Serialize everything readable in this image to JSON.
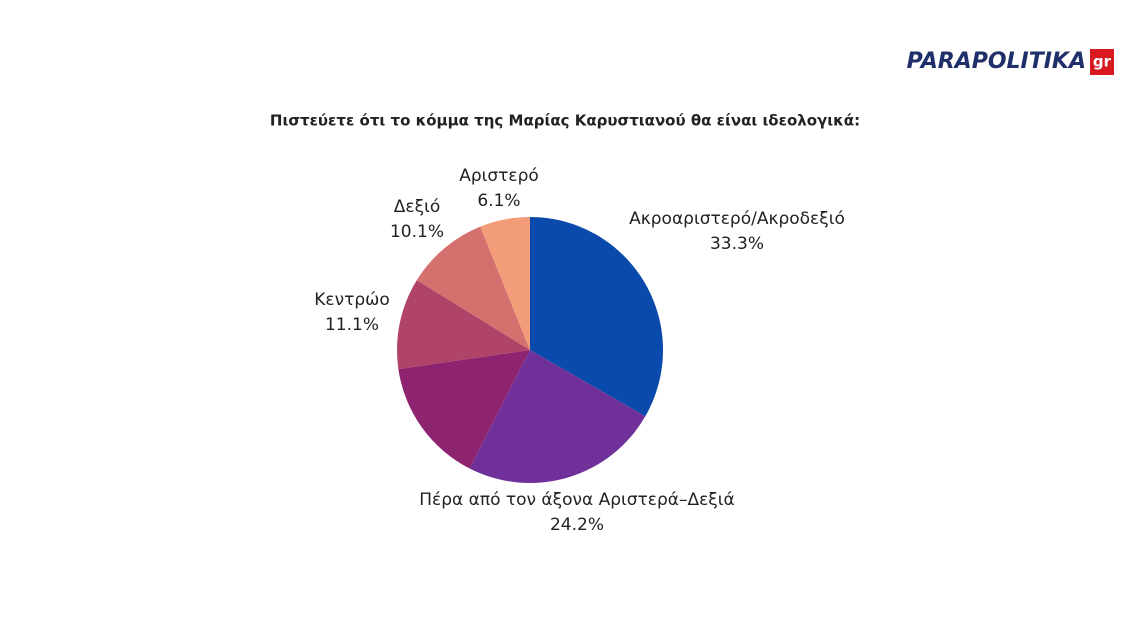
{
  "logo": {
    "text": "PARAPOLITIKA",
    "suffix": "gr"
  },
  "chart_data": {
    "type": "pie",
    "title": "Πιστεύετε ότι το κόμμα της Μαρίας Καρυστιανού θα είναι ιδεολογικά:",
    "categories": [
      "Ακροαριστερό/Ακροδεξιό",
      "Πέρα από τον άξονα Αριστερά–Δεξιά",
      null,
      "Κεντρώο",
      "Δεξιό",
      "Αριστερό"
    ],
    "values": [
      33.3,
      24.2,
      15.2,
      11.1,
      10.1,
      6.1
    ],
    "value_labels": [
      "33.3%",
      "24.2%",
      null,
      "11.1%",
      "10.1%",
      "6.1%"
    ],
    "colors": [
      "#0a4aad",
      "#70309a",
      "#8e2470",
      "#b04468",
      "#d4716e",
      "#f29c79"
    ]
  }
}
